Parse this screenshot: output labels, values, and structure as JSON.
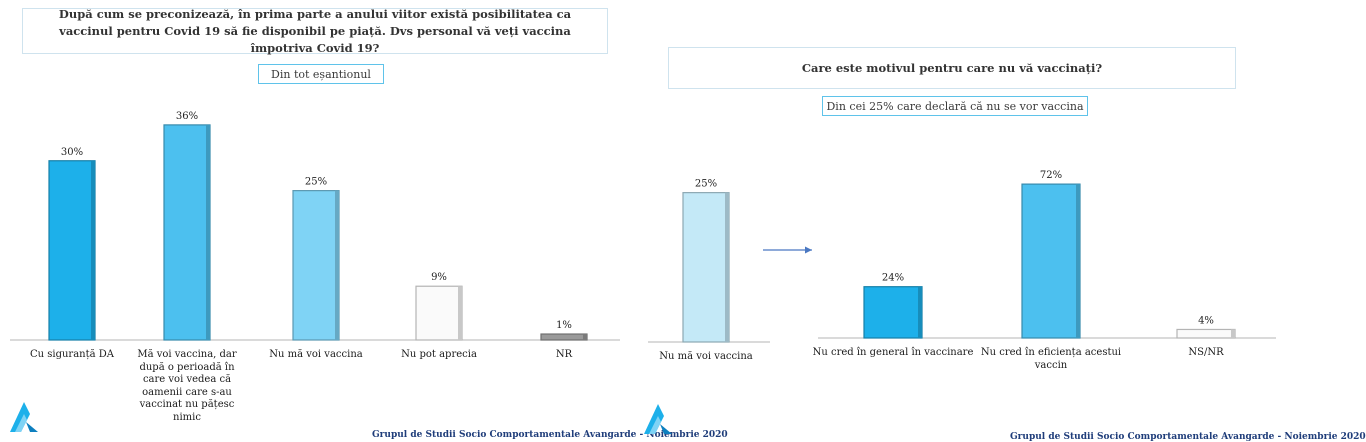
{
  "left": {
    "question": "După cum se preconizează, în prima parte a anului viitor există posibilitatea ca vaccinul pentru Covid 19 să fie disponibil pe piață. Dvs personal vă veți vaccina împotriva Covid 19?",
    "base": "Din tot eșantionul",
    "footer": "Grupul de Studii Socio Comportamentale Avangarde   -  Noiembrie 2020"
  },
  "right": {
    "question": "Care este motivul pentru care nu vă vaccinați?",
    "base": "Din cei 25% care declară că nu se vor vaccina",
    "footer": "Grupul de Studii Socio Comportamentale Avangarde   -  Noiembrie 2020"
  },
  "colors": {
    "accent_blue": "#1db0ea",
    "mid_blue": "#4cc0ef",
    "light_blue": "#7fd3f5",
    "pale_blue": "#c4e9f7",
    "white_bar": "#fafafa",
    "grey_bar": "#9a9a9a",
    "footer_navy": "#1f3d7a",
    "arrow_blue": "#4a78c2"
  },
  "icons": {
    "logo": "avangarde-a-logo-icon",
    "arrow": "right-arrow-icon"
  },
  "chart_data": [
    {
      "type": "bar",
      "title": "",
      "categories": [
        "Cu siguranță DA",
        "Mă voi vaccina, dar după o perioadă în care voi vedea că oamenii care s-au vaccinat nu pățesc nimic",
        "Nu mă voi vaccina",
        "Nu pot aprecia",
        "NR"
      ],
      "values": [
        30,
        36,
        25,
        9,
        1
      ],
      "data_labels": [
        "30%",
        "36%",
        "25%",
        "9%",
        "1%"
      ],
      "bar_colors": [
        "#1db0ea",
        "#4cc0ef",
        "#7fd3f5",
        "#fafafa",
        "#9a9a9a"
      ],
      "ylim": [
        0,
        40
      ],
      "grid": false,
      "legend": "none"
    },
    {
      "type": "bar",
      "title": "",
      "categories": [
        "Nu mă voi vaccina"
      ],
      "values": [
        25
      ],
      "data_labels": [
        "25%"
      ],
      "bar_colors": [
        "#c4e9f7"
      ],
      "ylim": [
        0,
        40
      ],
      "grid": false,
      "legend": "none"
    },
    {
      "type": "bar",
      "title": "",
      "categories": [
        "Nu cred în general în vaccinare",
        "Nu cred în eficiența acestui vaccin",
        "NS/NR"
      ],
      "values": [
        24,
        72,
        4
      ],
      "data_labels": [
        "24%",
        "72%",
        "4%"
      ],
      "bar_colors": [
        "#1db0ea",
        "#4cc0ef",
        "#fafafa"
      ],
      "ylim": [
        0,
        80
      ],
      "grid": false,
      "legend": "none"
    }
  ]
}
